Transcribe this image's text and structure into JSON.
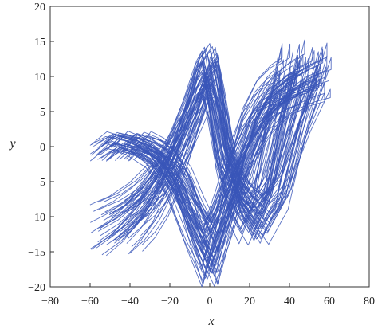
{
  "chart_data": {
    "type": "line",
    "title": "",
    "xlabel": "x",
    "ylabel": "y",
    "xlim": [
      -80,
      80
    ],
    "ylim": [
      -20,
      20
    ],
    "x_ticks": [
      -80,
      -60,
      -40,
      -20,
      0,
      20,
      40,
      60,
      80
    ],
    "y_ticks": [
      -20,
      -15,
      -10,
      -5,
      0,
      5,
      10,
      15,
      20
    ],
    "grid": false,
    "legend": "none",
    "line_color": "#3a56b8",
    "series": [
      {
        "x": [
          -58,
          -48,
          -38,
          -28,
          -18,
          -10,
          -4,
          0,
          4,
          10,
          18,
          28,
          38,
          48,
          58,
          58,
          50,
          40,
          30,
          20,
          10,
          0,
          -10,
          -20,
          -30,
          -40,
          -50,
          -58
        ],
        "y": [
          -14.5,
          -12.5,
          -9.5,
          -5,
          1,
          7,
          12,
          13.5,
          8,
          -2,
          -9,
          -13,
          -8,
          4,
          14,
          12,
          11,
          9,
          5,
          -2,
          -11,
          -19,
          -13,
          -6,
          -2,
          0,
          1,
          -1
        ]
      }
    ]
  }
}
